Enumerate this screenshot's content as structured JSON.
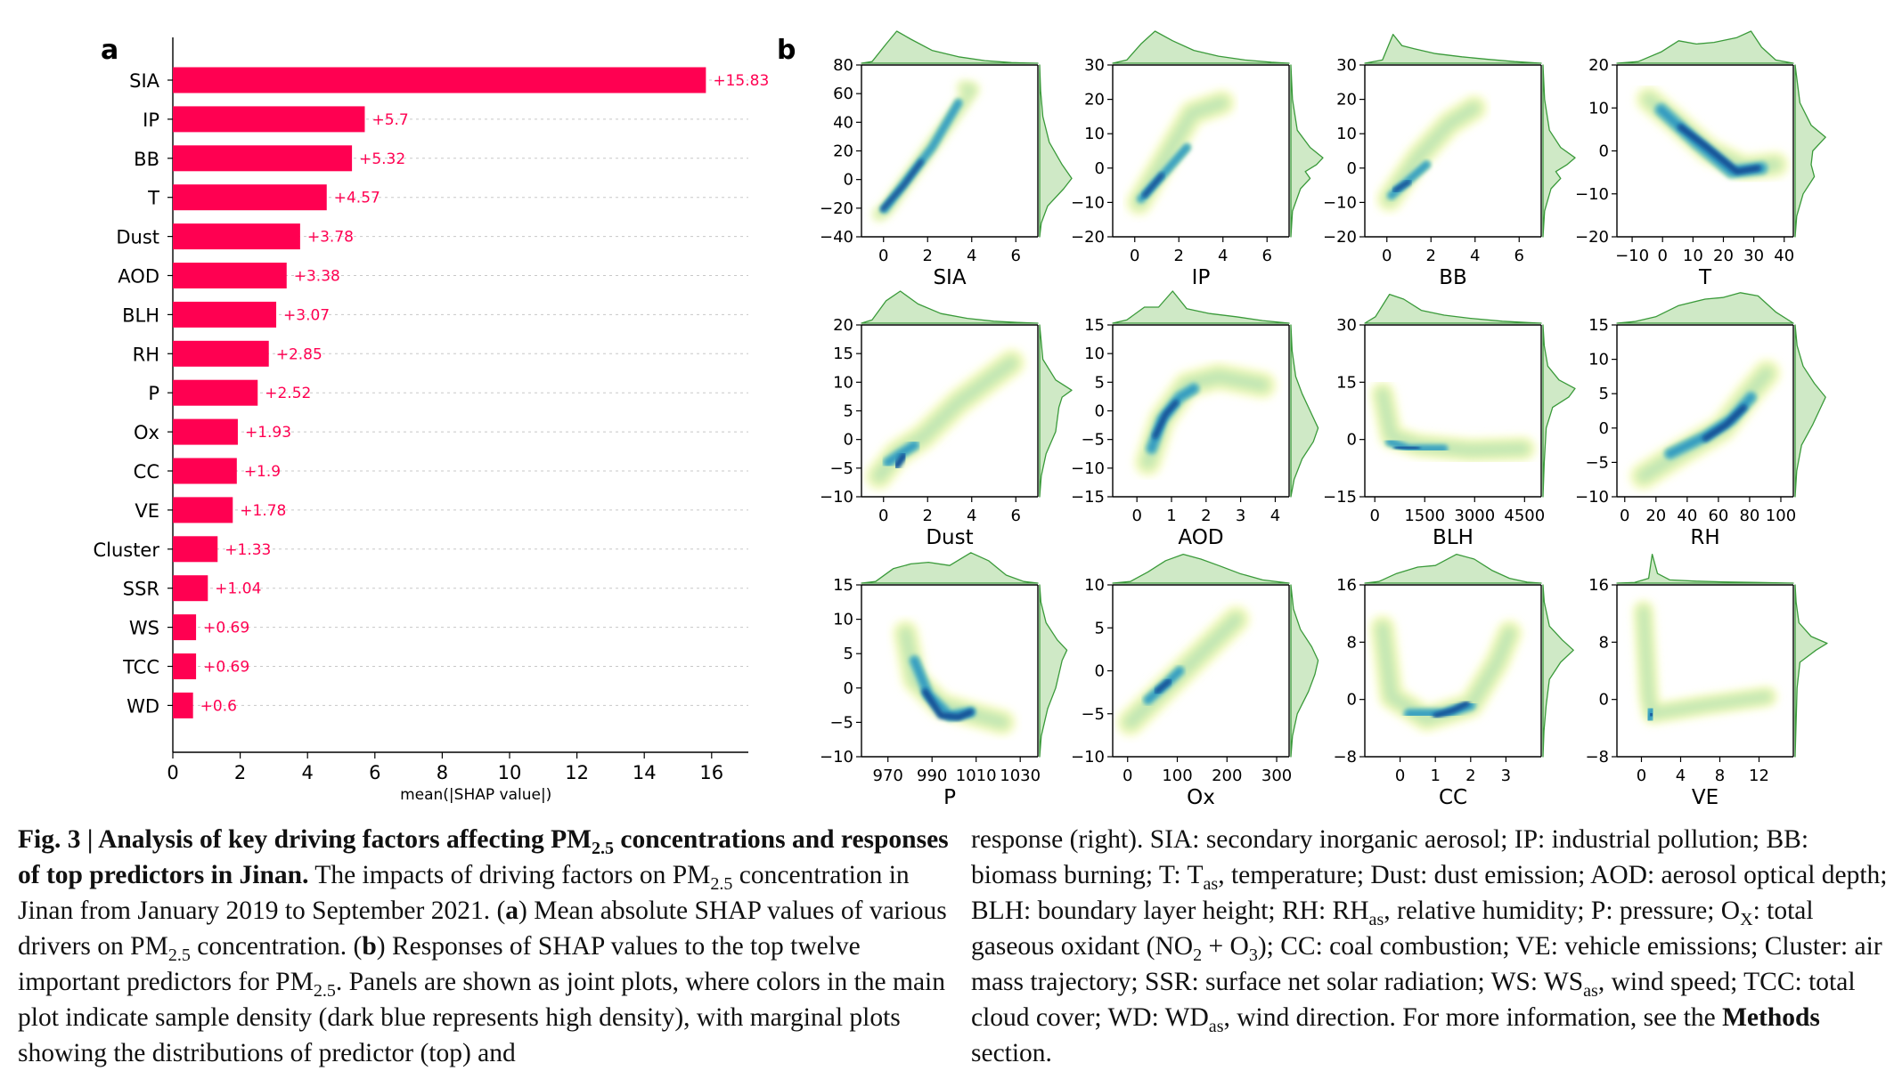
{
  "figure": {
    "panel_a_letter": "a",
    "panel_b_letter": "b"
  },
  "chart_data": [
    {
      "type": "bar",
      "orientation": "horizontal",
      "categories": [
        "SIA",
        "IP",
        "BB",
        "T",
        "Dust",
        "AOD",
        "BLH",
        "RH",
        "P",
        "Ox",
        "CC",
        "VE",
        "Cluster",
        "SSR",
        "WS",
        "TCC",
        "WD"
      ],
      "values": [
        15.83,
        5.7,
        5.32,
        4.57,
        3.78,
        3.38,
        3.07,
        2.85,
        2.52,
        1.93,
        1.9,
        1.78,
        1.33,
        1.04,
        0.69,
        0.69,
        0.6
      ],
      "value_labels": [
        "+15.83",
        "+5.7",
        "+5.32",
        "+4.57",
        "+3.78",
        "+3.38",
        "+3.07",
        "+2.85",
        "+2.52",
        "+1.93",
        "+1.9",
        "+1.78",
        "+1.33",
        "+1.04",
        "+0.69",
        "+0.69",
        "+0.6"
      ],
      "xlabel": "mean(|SHAP value|)",
      "xlim": [
        0,
        17.5
      ],
      "xticks": [
        "0",
        "2",
        "4",
        "6",
        "8",
        "10",
        "12",
        "14",
        "16"
      ],
      "bar_color": "#ff0051",
      "grid": "dashed horizontal"
    },
    {
      "type": "joint_density_plots",
      "colormap": "YlGnBu",
      "marginal_color": "#3a9a3a",
      "panels": [
        {
          "xlabel": "SIA",
          "xlim": [
            -1,
            7
          ],
          "ylim": [
            -40,
            80
          ],
          "xticks": [
            "0",
            "2",
            "4",
            "6"
          ],
          "yticks": [
            "−40",
            "−20",
            "0",
            "20",
            "40",
            "60",
            "80"
          ]
        },
        {
          "xlabel": "IP",
          "xlim": [
            -1,
            7
          ],
          "ylim": [
            -20,
            30
          ],
          "xticks": [
            "0",
            "2",
            "4",
            "6"
          ],
          "yticks": [
            "−20",
            "−10",
            "0",
            "10",
            "20",
            "30"
          ]
        },
        {
          "xlabel": "BB",
          "xlim": [
            -1,
            7
          ],
          "ylim": [
            -20,
            30
          ],
          "xticks": [
            "0",
            "2",
            "4",
            "6"
          ],
          "yticks": [
            "−20",
            "−10",
            "0",
            "10",
            "20",
            "30"
          ]
        },
        {
          "xlabel": "T",
          "xlim": [
            -15,
            43
          ],
          "ylim": [
            -20,
            20
          ],
          "xticks": [
            "−10",
            "0",
            "10",
            "20",
            "30",
            "40"
          ],
          "yticks": [
            "−20",
            "−10",
            "0",
            "10",
            "20"
          ]
        },
        {
          "xlabel": "Dust",
          "xlim": [
            -1,
            7
          ],
          "ylim": [
            -10,
            20
          ],
          "xticks": [
            "0",
            "2",
            "4",
            "6"
          ],
          "yticks": [
            "−10",
            "−5",
            "0",
            "5",
            "10",
            "15",
            "20"
          ]
        },
        {
          "xlabel": "AOD",
          "xlim": [
            -0.7,
            4.4
          ],
          "ylim": [
            -15,
            15
          ],
          "xticks": [
            "0",
            "1",
            "2",
            "3",
            "4"
          ],
          "yticks": [
            "−15",
            "−10",
            "−5",
            "0",
            "5",
            "10",
            "15"
          ]
        },
        {
          "xlabel": "BLH",
          "xlim": [
            -300,
            5000
          ],
          "ylim": [
            -15,
            30
          ],
          "xticks": [
            "0",
            "1500",
            "3000",
            "4500"
          ],
          "yticks": [
            "−15",
            "0",
            "15",
            "30"
          ]
        },
        {
          "xlabel": "RH",
          "xlim": [
            -5,
            108
          ],
          "ylim": [
            -10,
            15
          ],
          "xticks": [
            "0",
            "20",
            "40",
            "60",
            "80",
            "100"
          ],
          "yticks": [
            "−10",
            "−5",
            "0",
            "5",
            "10",
            "15"
          ]
        },
        {
          "xlabel": "P",
          "xlim": [
            958,
            1038
          ],
          "ylim": [
            -10,
            15
          ],
          "xticks": [
            "970",
            "990",
            "1010",
            "1030"
          ],
          "yticks": [
            "−10",
            "−5",
            "0",
            "5",
            "10",
            "15"
          ]
        },
        {
          "xlabel": "Ox",
          "xlim": [
            -30,
            325
          ],
          "ylim": [
            -10,
            10
          ],
          "xticks": [
            "0",
            "100",
            "200",
            "300"
          ],
          "yticks": [
            "−10",
            "−5",
            "0",
            "5",
            "10"
          ]
        },
        {
          "xlabel": "CC",
          "xlim": [
            -1,
            4
          ],
          "ylim": [
            -8,
            16
          ],
          "xticks": [
            "0",
            "1",
            "2",
            "3"
          ],
          "yticks": [
            "−8",
            "0",
            "8",
            "16"
          ]
        },
        {
          "xlabel": "VE",
          "xlim": [
            -2.5,
            15.5
          ],
          "ylim": [
            -8,
            16
          ],
          "xticks": [
            "0",
            "4",
            "8",
            "12"
          ],
          "yticks": [
            "−8",
            "0",
            "8",
            "16"
          ]
        }
      ]
    }
  ],
  "caption": {
    "fig_label": "Fig. 3 | Analysis of key driving factors affecting PM",
    "fig_label_sub": "2.5",
    "fig_label_end": " concentrations and responses of top predictors in Jinan.",
    "t1": " The impacts of driving factors on PM",
    "t1_sub": "2.5",
    "t2": " concentration in Jinan from January 2019 to September 2021. (",
    "a": "a",
    "t3": ") Mean absolute SHAP values of various drivers on PM",
    "t3_sub": "2.5",
    "t4": " concentration. (",
    "b": "b",
    "t5": ") Responses of SHAP values to the top twelve important predictors for PM",
    "t5_sub": "2.5",
    "t6": ". Panels are shown as joint plots, where colors in the main plot indicate sample density (dark blue represents high density), with marginal plots showing the distributions of predictor (top) and",
    "r1": "response (right). SIA: secondary inorganic aerosol; IP: industrial pollution; BB: biomass burning; T: T",
    "r1_sub": "as",
    "r2": ", temperature; Dust: dust emission; AOD: aerosol optical depth; BLH: boundary layer height; RH: RH",
    "r2_sub": "as",
    "r3": ", relative humidity; P: pressure; O",
    "r3_sub": "X",
    "r4": ": total gaseous oxidant (NO",
    "r4_sub": "2",
    "r5": " + O",
    "r5_sub": "3",
    "r6": "); CC: coal combustion; VE: vehicle emissions; Cluster: air mass trajectory; SSR: surface net solar radiation; WS: WS",
    "r6_sub": "as",
    "r7": ", wind speed; TCC: total cloud cover; WD: WD",
    "r7_sub": "as",
    "r8": ", wind direction. For more information, see the ",
    "methods": "Methods",
    "r9": " section."
  }
}
